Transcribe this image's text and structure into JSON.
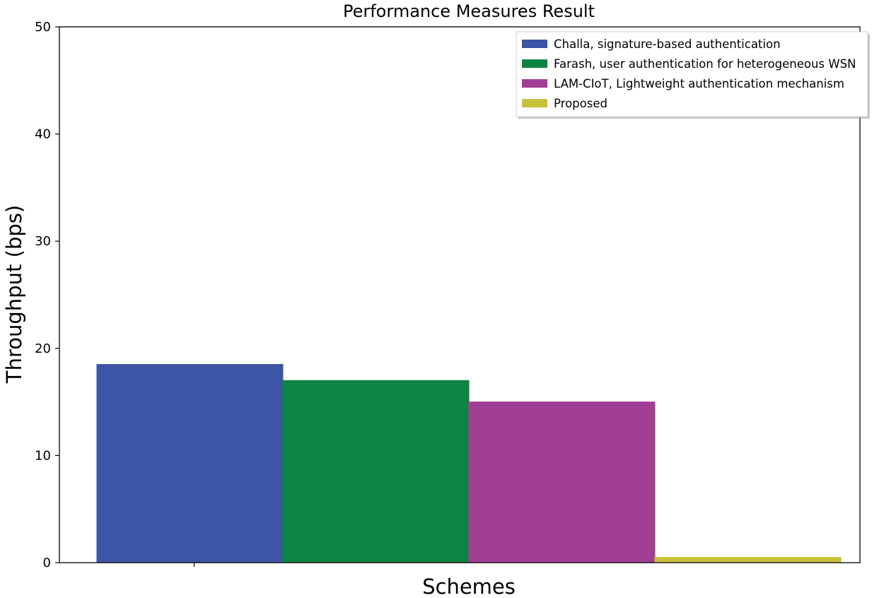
{
  "chart_data": {
    "type": "bar",
    "title": "Performance Measures Result",
    "xlabel": "Schemes",
    "ylabel": "Throughput (bps)",
    "ylim": [
      0,
      50
    ],
    "yticks": [
      0,
      10,
      20,
      30,
      40,
      50
    ],
    "categories": [
      ""
    ],
    "grid": false,
    "legend_position": "top-right",
    "series": [
      {
        "name": "Challa, signature-based authentication",
        "values": [
          18.5
        ],
        "color": "#3d55a5"
      },
      {
        "name": "Farash, user authentication for heterogeneous WSN",
        "values": [
          17.0
        ],
        "color": "#0c8442"
      },
      {
        "name": "LAM-CIoT, Lightweight authentication mechanism",
        "values": [
          15.0
        ],
        "color": "#a13f95"
      },
      {
        "name": "Proposed",
        "values": [
          0.5
        ],
        "color": "#c8c23a"
      }
    ]
  }
}
